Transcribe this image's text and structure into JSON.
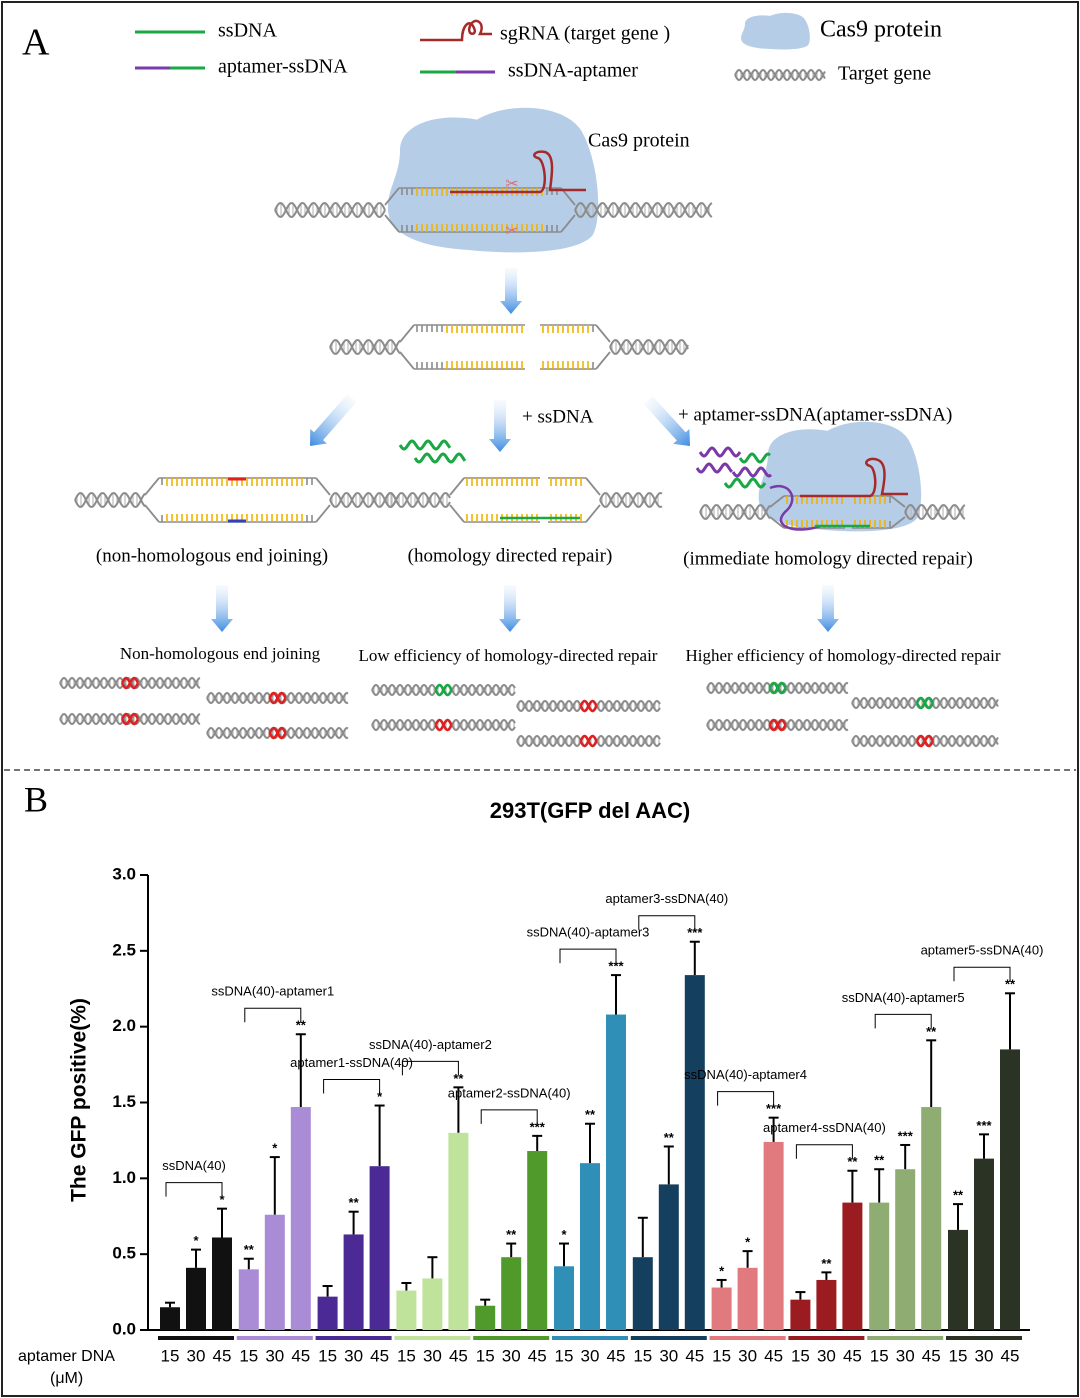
{
  "diagram": {
    "label": "A",
    "legend": {
      "ssdna": "ssDNA",
      "aptamer_ssdna": "aptamer-ssDNA",
      "sgrna": "sgRNA (target gene )",
      "ssdna_aptamer": "ssDNA-aptamer",
      "cas9": "Cas9 protein",
      "target_gene": "Target gene"
    },
    "cas9_label": "Cas9 protein",
    "step_ssdna": "+ ssDNA",
    "step_aptamer": "+  aptamer-ssDNA(aptamer-ssDNA)",
    "repair": [
      "(non-homologous end joining)",
      "(homology directed repair)",
      "(immediate homology directed repair)"
    ],
    "outcomes": [
      "Non-homologous end joining",
      "Low efficiency of homology-directed repair",
      "Higher efficiency of homology-directed repair"
    ]
  },
  "chart_data": {
    "type": "bar",
    "panel_label": "B",
    "title": "293T(GFP del AAC)",
    "ylabel": "The GFP positive(%)",
    "xlabel": [
      "aptamer DNA",
      "(μM)"
    ],
    "categories": [
      "15",
      "30",
      "45"
    ],
    "ylim": [
      0,
      3
    ],
    "yticks": [
      {
        "value": 0,
        "label": "0.0"
      },
      0.5,
      {
        "value": 1,
        "label": "1.0"
      },
      1.5,
      {
        "value": 2,
        "label": "2.0"
      },
      2.5,
      {
        "value": 3,
        "label": "3.0"
      }
    ],
    "groups": [
      {
        "name": "ssDNA(40)",
        "color": "#111111",
        "values": [
          0.15,
          0.41,
          0.61
        ],
        "errors": [
          0.03,
          0.12,
          0.19
        ],
        "stars": [
          null,
          "*",
          "*"
        ]
      },
      {
        "name": "ssDNA(40)-aptamer1",
        "color": "#a98bd6",
        "values": [
          0.4,
          0.76,
          1.47
        ],
        "errors": [
          0.07,
          0.38,
          0.48
        ],
        "stars": [
          "**",
          "*",
          "**"
        ]
      },
      {
        "name": "aptamer1-ssDNA(40)",
        "color": "#4b2a96",
        "values": [
          0.22,
          0.63,
          1.08
        ],
        "errors": [
          0.07,
          0.15,
          0.4
        ],
        "stars": [
          null,
          "**",
          "*"
        ]
      },
      {
        "name": "ssDNA(40)-aptamer2",
        "color": "#bfe39a",
        "values": [
          0.26,
          0.34,
          1.3
        ],
        "errors": [
          0.05,
          0.14,
          0.3
        ],
        "stars": [
          null,
          null,
          "**"
        ]
      },
      {
        "name": "aptamer2-ssDNA(40)",
        "color": "#4f9a2a",
        "values": [
          0.16,
          0.48,
          1.18
        ],
        "errors": [
          0.04,
          0.09,
          0.1
        ],
        "stars": [
          null,
          "**",
          "***"
        ]
      },
      {
        "name": "ssDNA(40)-aptamer3",
        "color": "#2f8fb7",
        "values": [
          0.42,
          1.1,
          2.08
        ],
        "errors": [
          0.15,
          0.26,
          0.26
        ],
        "stars": [
          "*",
          "**",
          "***"
        ]
      },
      {
        "name": "aptamer3-ssDNA(40)",
        "color": "#153f5e",
        "values": [
          0.48,
          0.96,
          2.34
        ],
        "errors": [
          0.26,
          0.25,
          0.22
        ],
        "stars": [
          null,
          "**",
          "***"
        ]
      },
      {
        "name": "ssDNA(40)-aptamer4",
        "color": "#e07a7e",
        "values": [
          0.28,
          0.41,
          1.24
        ],
        "errors": [
          0.05,
          0.11,
          0.16
        ],
        "stars": [
          "*",
          "*",
          "***"
        ]
      },
      {
        "name": "aptamer4-ssDNA(40)",
        "color": "#9b1c20",
        "values": [
          0.2,
          0.33,
          0.84
        ],
        "errors": [
          0.05,
          0.05,
          0.21
        ],
        "stars": [
          null,
          "**",
          "**"
        ]
      },
      {
        "name": "ssDNA(40)-aptamer5",
        "color": "#8fac72",
        "values": [
          0.84,
          1.06,
          1.47
        ],
        "errors": [
          0.22,
          0.16,
          0.44
        ],
        "stars": [
          "**",
          "***",
          "**"
        ]
      },
      {
        "name": "aptamer5-ssDNA(40)",
        "color": "#2b3424",
        "values": [
          0.66,
          1.13,
          1.85
        ],
        "errors": [
          0.17,
          0.16,
          0.37
        ],
        "stars": [
          "**",
          "***",
          "**"
        ]
      }
    ]
  }
}
